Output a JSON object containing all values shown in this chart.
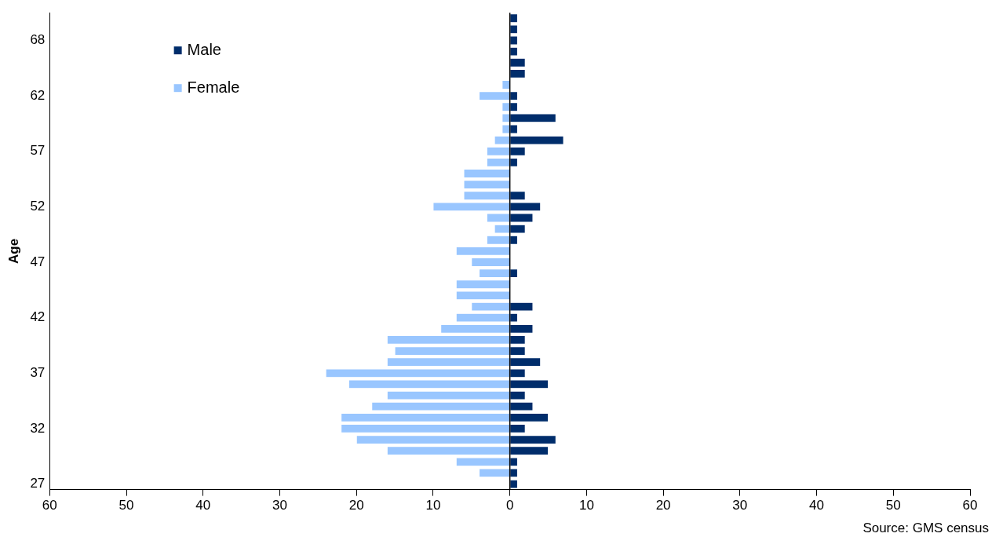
{
  "chart_data": {
    "type": "bar",
    "orientation": "horizontal",
    "stacked": true,
    "ylabel": "Age",
    "categories": [
      null,
      null,
      "68",
      null,
      null,
      null,
      null,
      "62",
      null,
      null,
      null,
      null,
      "57",
      null,
      null,
      null,
      null,
      "52",
      null,
      null,
      null,
      null,
      "47",
      null,
      null,
      null,
      null,
      "42",
      null,
      null,
      null,
      null,
      "37",
      null,
      null,
      null,
      null,
      "32",
      null,
      null,
      null,
      null,
      "27"
    ],
    "series": [
      {
        "name": "Male",
        "color": "#002d6b",
        "values": [
          1,
          1,
          1,
          1,
          2,
          2,
          0,
          1,
          1,
          6,
          1,
          7,
          2,
          1,
          0,
          0,
          2,
          4,
          3,
          2,
          1,
          0,
          0,
          1,
          0,
          0,
          3,
          1,
          3,
          2,
          2,
          4,
          2,
          5,
          2,
          3,
          5,
          2,
          6,
          5,
          1,
          1,
          1
        ]
      },
      {
        "name": "Female",
        "color": "#99c6ff",
        "values": [
          0,
          0,
          0,
          0,
          0,
          0,
          -1,
          -4,
          -1,
          -1,
          -1,
          -2,
          -3,
          -3,
          -6,
          -6,
          -6,
          -10,
          -3,
          -2,
          -3,
          -7,
          -5,
          -4,
          -7,
          -7,
          -5,
          -7,
          -9,
          -16,
          -15,
          -16,
          -24,
          -21,
          -16,
          -18,
          -22,
          -22,
          -20,
          -16,
          -7,
          -4,
          0
        ]
      }
    ],
    "xlim": [
      -60,
      60
    ],
    "xticks": [
      {
        "value": -60,
        "label": "60"
      },
      {
        "value": -50,
        "label": "50"
      },
      {
        "value": -40,
        "label": "40"
      },
      {
        "value": -30,
        "label": "30"
      },
      {
        "value": -20,
        "label": "20"
      },
      {
        "value": -10,
        "label": "10"
      },
      0,
      10,
      20,
      30,
      40,
      50,
      60
    ],
    "legend": "top left",
    "grid": false,
    "ref_lines": [
      {
        "axis": "x",
        "value": 0,
        "color": "#000000"
      }
    ],
    "annotations": [
      "Source: GMS census"
    ]
  }
}
